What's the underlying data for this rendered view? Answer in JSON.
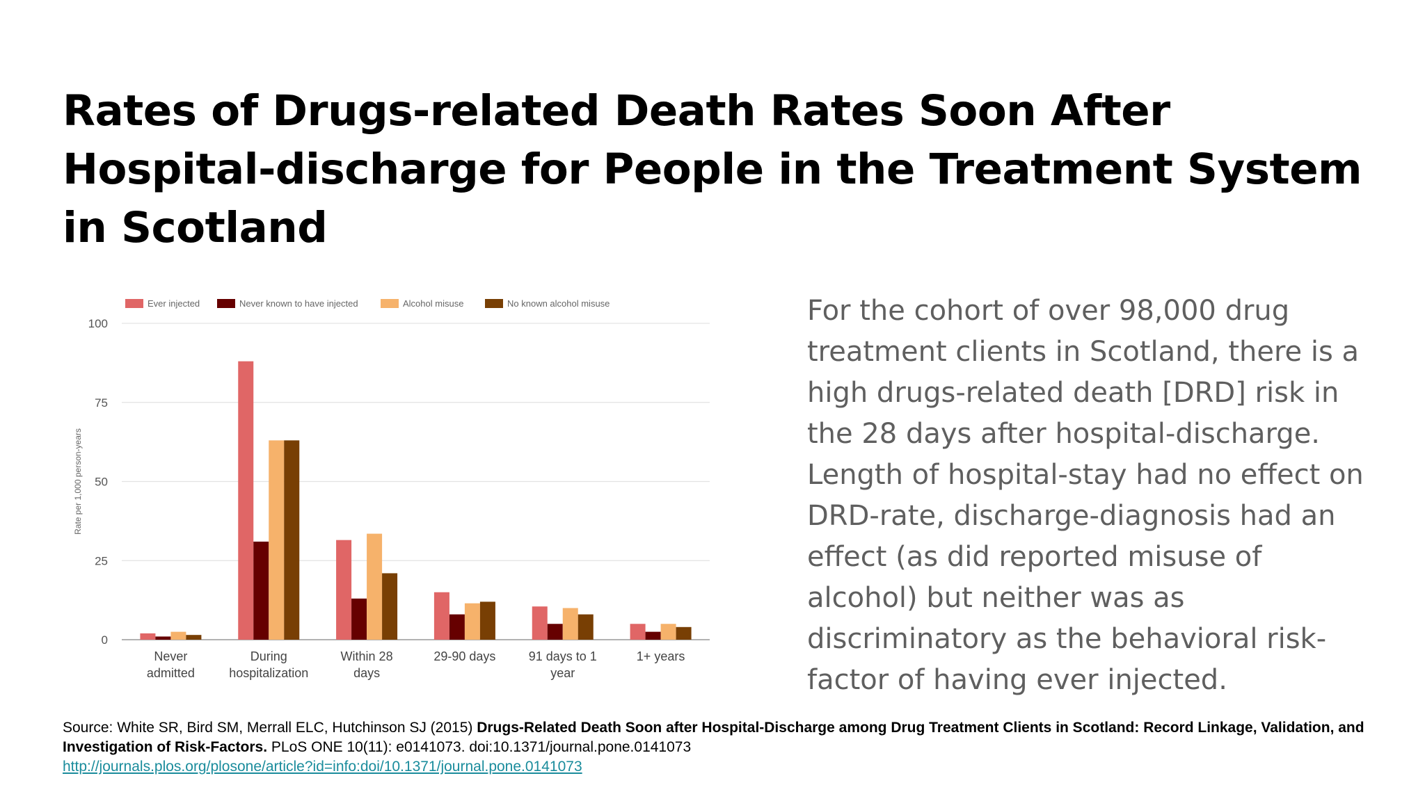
{
  "slide": {
    "title": "Rates of Drugs-related Death Rates Soon After Hospital-discharge for People in the Treatment System in Scotland",
    "body": "For the cohort of over 98,000 drug treatment clients in Scotland, there is a high drugs-related death [DRD] risk in the 28 days after hospital-discharge. Length of hospital-stay had no effect on DRD-rate, discharge-diagnosis had an effect (as did reported misuse of alcohol) but neither was as discriminatory as the behavioral risk-factor of having ever injected."
  },
  "source": {
    "prefix": "Source: White SR, Bird SM, Merrall ELC, Hutchinson SJ (2015) ",
    "bold_title": "Drugs-Related Death Soon after Hospital-Discharge among Drug Treatment Clients in Scotland: Record Linkage, Validation, and Investigation of Risk-Factors.",
    "suffix": " PLoS ONE 10(11): e0141073. doi:10.1371/journal.pone.0141073",
    "link": "http://journals.plos.org/plosone/article?id=info:doi/10.1371/journal.pone.0141073"
  },
  "chart_data": {
    "type": "bar",
    "ylabel": "Rate per 1,000 person-years",
    "xlabel": "",
    "ylim": [
      0,
      100
    ],
    "yticks": [
      0,
      25,
      50,
      75,
      100
    ],
    "grid": true,
    "legend_position": "top",
    "categories": [
      [
        "Never",
        "admitted"
      ],
      [
        "During",
        "hospitalization"
      ],
      [
        "Within 28",
        "days"
      ],
      [
        "29-90 days"
      ],
      [
        "91 days to 1",
        "year"
      ],
      [
        "1+ years"
      ]
    ],
    "series": [
      {
        "name": "Ever injected",
        "color": "#e06666",
        "values": [
          2,
          88,
          31.5,
          15,
          10.5,
          5
        ]
      },
      {
        "name": "Never known to have injected",
        "color": "#660000",
        "values": [
          1,
          31,
          13,
          8,
          5,
          2.5
        ]
      },
      {
        "name": "Alcohol misuse",
        "color": "#f6b26b",
        "values": [
          2.5,
          63,
          33.5,
          11.5,
          10,
          5
        ]
      },
      {
        "name": "No known alcohol misuse",
        "color": "#783f04",
        "values": [
          1.5,
          63,
          21,
          12,
          8,
          4
        ]
      }
    ]
  }
}
